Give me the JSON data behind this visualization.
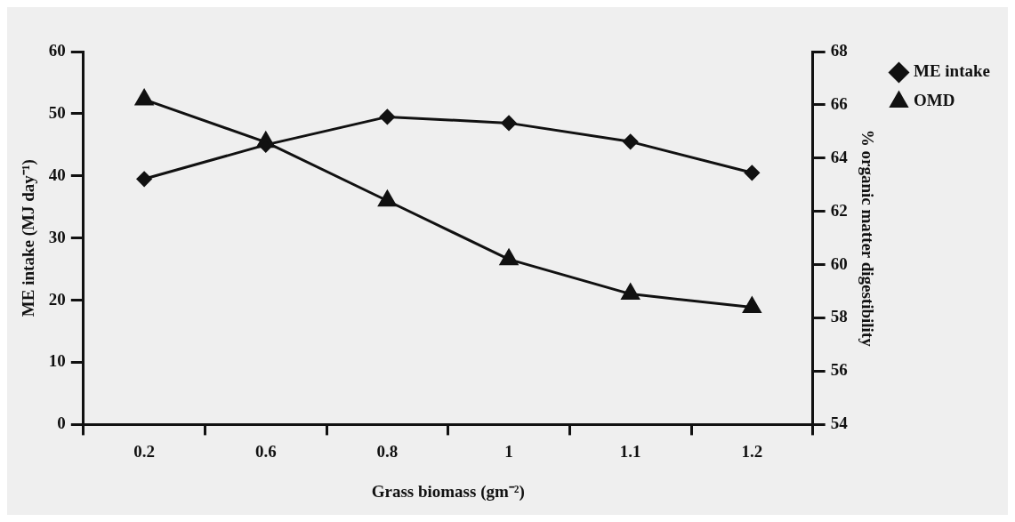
{
  "chart_data": {
    "type": "line",
    "xlabel": "Grass biomass (gm⁻²)",
    "ylabel": "ME intake (MJ day⁻¹)",
    "y2label": "% organic matter digestibility",
    "categories": [
      "0.2",
      "0.6",
      "0.8",
      "1",
      "1.1",
      "1.2"
    ],
    "series": [
      {
        "name": "ME intake",
        "color": "#111111",
        "marker": "diamond",
        "values": [
          39.5,
          45,
          49.5,
          48.5,
          45.5,
          40.5
        ]
      },
      {
        "name": "OMD",
        "color": "#111111",
        "marker": "triangle",
        "axis": "y2",
        "values": [
          66.2,
          64.6,
          62.4,
          60.2,
          58.9,
          58.4
        ]
      }
    ],
    "ylim": [
      0,
      60
    ],
    "yticks": [
      0,
      10,
      20,
      30,
      40,
      50,
      60
    ],
    "y2lim": [
      54,
      68
    ],
    "y2ticks": [
      54,
      56,
      58,
      60,
      62,
      64,
      66,
      68
    ],
    "legend": "top right",
    "grid": false,
    "line_style": "solid"
  }
}
